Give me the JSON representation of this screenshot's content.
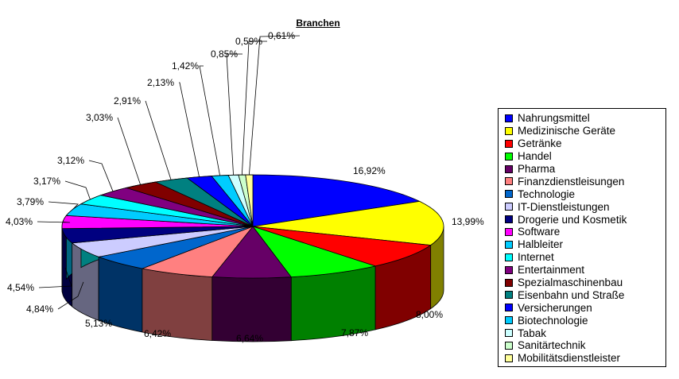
{
  "chart_data": {
    "type": "pie",
    "title": "Branchen",
    "legend_position": "right",
    "categories": [
      "Nahrungsmittel",
      "Medizinische Geräte",
      "Getränke",
      "Handel",
      "Pharma",
      "Finanzdienstleisungen",
      "Technologie",
      "IT-Dienstleistungen",
      "Drogerie und Kosmetik",
      "Software",
      "Halbleiter",
      "Internet",
      "Entertainment",
      "Spezialmaschinenbau",
      "Eisenbahn und Straße",
      "Versicherungen",
      "Biotechnologie",
      "Tabak",
      "Sanitärtechnik",
      "Mobilitätsdienstleister"
    ],
    "values": [
      16.92,
      13.99,
      8.0,
      7.87,
      6.64,
      6.42,
      5.13,
      4.84,
      4.54,
      4.03,
      3.79,
      3.17,
      3.12,
      3.03,
      2.91,
      2.13,
      1.42,
      0.85,
      0.59,
      0.61
    ],
    "labels": [
      "16,92%",
      "13,99%",
      "8,00%",
      "7,87%",
      "6,64%",
      "6,42%",
      "5,13%",
      "4,84%",
      "4,54%",
      "4,03%",
      "3,79%",
      "3,17%",
      "3,12%",
      "3,03%",
      "2,91%",
      "2,13%",
      "1,42%",
      "0,85%",
      "0,59%",
      "0,61%"
    ],
    "colors": [
      "#0000ff",
      "#ffff00",
      "#ff0000",
      "#00ff00",
      "#660066",
      "#ff8080",
      "#0066cc",
      "#ccccff",
      "#000080",
      "#ff00ff",
      "#00ccff",
      "#00ffff",
      "#800080",
      "#800000",
      "#008080",
      "#0000ff",
      "#00ccff",
      "#ccffff",
      "#ccffcc",
      "#ffff99"
    ]
  }
}
